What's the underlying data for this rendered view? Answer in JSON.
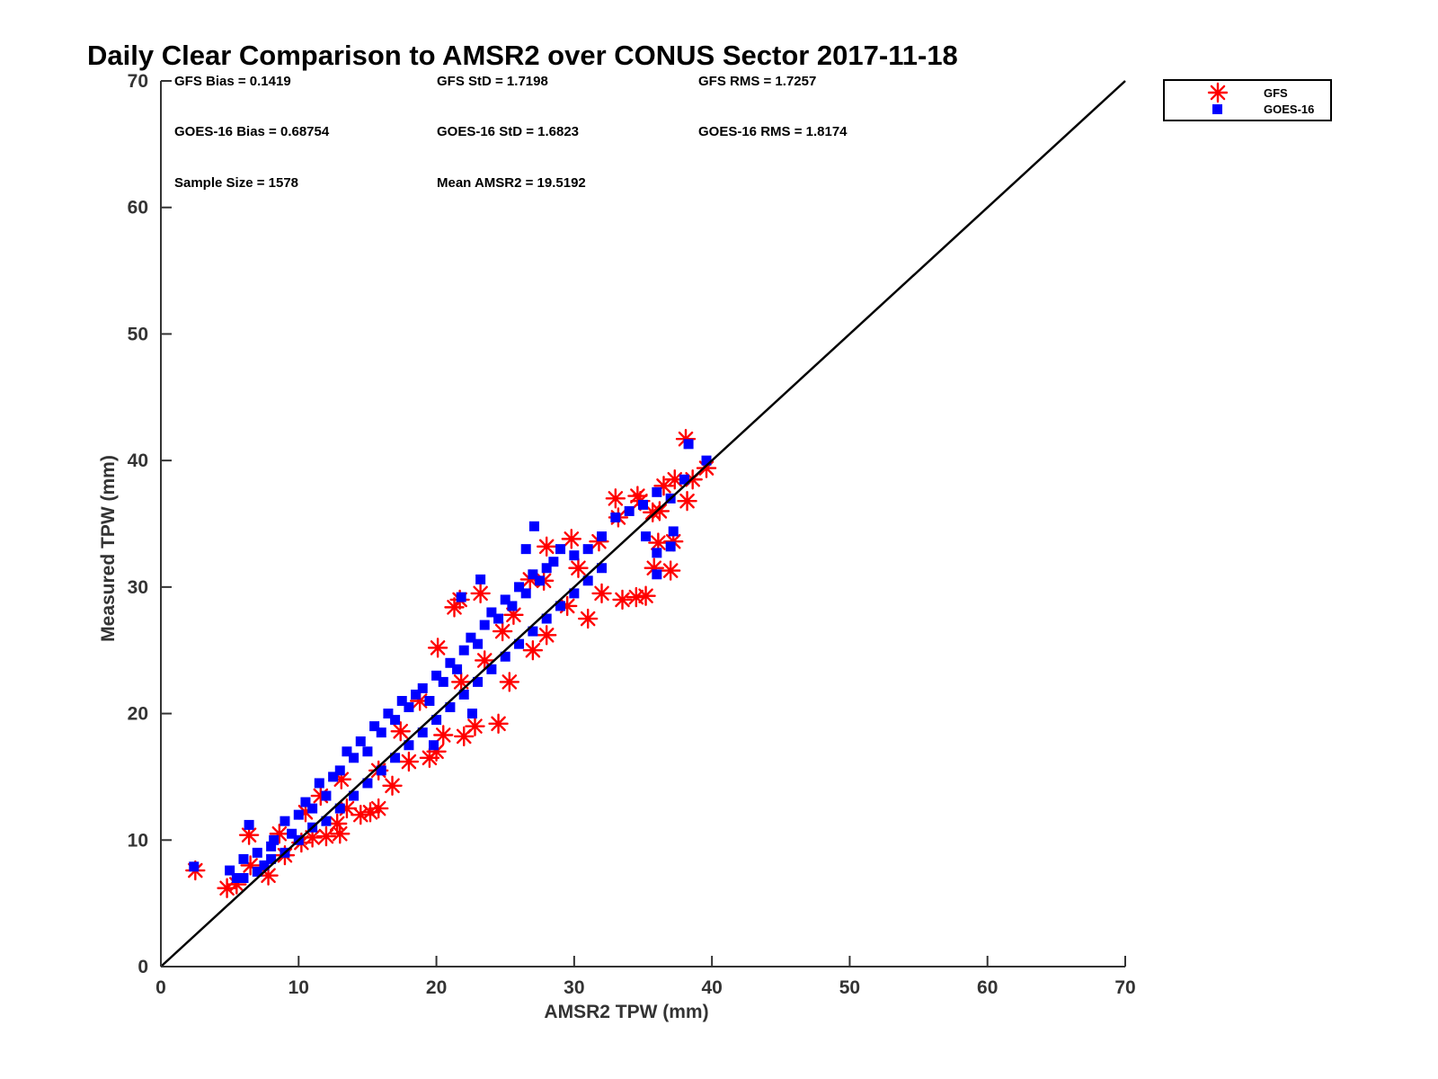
{
  "colors": {
    "gfs": "#ff0000",
    "goes": "#0000ff",
    "axis": "#333333",
    "line": "#000000"
  },
  "chart_data": {
    "type": "scatter",
    "title": "Daily Clear Comparison to AMSR2 over CONUS Sector 2017-11-18",
    "xlabel": "AMSR2 TPW (mm)",
    "ylabel": "Measured TPW (mm)",
    "xlim": [
      0,
      70
    ],
    "ylim": [
      0,
      70
    ],
    "xticks": [
      "0",
      "10",
      "20",
      "30",
      "40",
      "50",
      "60",
      "70"
    ],
    "yticks": [
      "0",
      "10",
      "20",
      "30",
      "40",
      "50",
      "60",
      "70"
    ],
    "grid": false,
    "legend_position": "top-right, outside plot",
    "reference_line": {
      "type": "one-to-one",
      "from": [
        0,
        0
      ],
      "to": [
        70,
        70
      ]
    },
    "stats": [
      [
        "GFS Bias = 0.1419",
        "GFS StD = 1.7198",
        "GFS RMS = 1.7257"
      ],
      [
        "GOES-16 Bias = 0.68754",
        "GOES-16 StD = 1.6823",
        "GOES-16 RMS = 1.8174"
      ],
      [
        "Sample Size = 1578",
        "Mean AMSR2 = 19.5192"
      ]
    ],
    "series": [
      {
        "name": "GFS",
        "marker": "asterisk",
        "color": "#ff0000",
        "points": [
          [
            2.5,
            7.6
          ],
          [
            4.8,
            6.2
          ],
          [
            5.5,
            6.5
          ],
          [
            6.4,
            10.4
          ],
          [
            7.8,
            7.2
          ],
          [
            9.0,
            8.8
          ],
          [
            10.2,
            9.8
          ],
          [
            11.0,
            10.2
          ],
          [
            12.0,
            10.3
          ],
          [
            13.0,
            10.5
          ],
          [
            13.5,
            12.5
          ],
          [
            14.5,
            12.0
          ],
          [
            15.2,
            12.2
          ],
          [
            15.8,
            12.5
          ],
          [
            16.8,
            14.3
          ],
          [
            18.0,
            16.2
          ],
          [
            19.5,
            16.5
          ],
          [
            20.0,
            17.0
          ],
          [
            20.5,
            18.3
          ],
          [
            22.0,
            18.2
          ],
          [
            22.8,
            19.0
          ],
          [
            24.5,
            19.2
          ],
          [
            21.3,
            28.4
          ],
          [
            21.7,
            29.0
          ],
          [
            23.2,
            29.5
          ],
          [
            20.1,
            25.2
          ],
          [
            13.1,
            14.8
          ],
          [
            15.8,
            15.5
          ],
          [
            25.3,
            22.5
          ],
          [
            27.0,
            25.0
          ],
          [
            28.0,
            26.2
          ],
          [
            29.5,
            28.5
          ],
          [
            31.0,
            27.5
          ],
          [
            32.0,
            29.5
          ],
          [
            33.5,
            29.0
          ],
          [
            34.5,
            29.2
          ],
          [
            35.2,
            29.3
          ],
          [
            35.8,
            31.5
          ],
          [
            37.0,
            31.3
          ],
          [
            28.0,
            33.2
          ],
          [
            29.8,
            33.8
          ],
          [
            31.8,
            33.6
          ],
          [
            33.0,
            37.0
          ],
          [
            34.6,
            37.2
          ],
          [
            36.5,
            38.0
          ],
          [
            37.3,
            38.5
          ],
          [
            38.2,
            36.8
          ],
          [
            38.6,
            38.5
          ],
          [
            39.6,
            39.4
          ],
          [
            38.1,
            41.7
          ],
          [
            33.2,
            35.5
          ],
          [
            36.1,
            33.5
          ],
          [
            37.2,
            33.6
          ],
          [
            35.7,
            35.9
          ],
          [
            34.8,
            36.8
          ],
          [
            36.2,
            36.0
          ],
          [
            30.3,
            31.5
          ],
          [
            26.8,
            30.6
          ],
          [
            25.6,
            27.8
          ],
          [
            27.8,
            30.5
          ],
          [
            21.8,
            22.5
          ],
          [
            23.5,
            24.2
          ],
          [
            17.4,
            18.6
          ],
          [
            11.6,
            13.5
          ],
          [
            8.6,
            10.5
          ],
          [
            6.5,
            8.0
          ],
          [
            10.5,
            12.2
          ],
          [
            18.8,
            21.0
          ],
          [
            24.8,
            26.5
          ],
          [
            12.8,
            11.3
          ]
        ]
      },
      {
        "name": "GOES-16",
        "marker": "square",
        "color": "#0000ff",
        "points": [
          [
            2.4,
            7.9
          ],
          [
            5.0,
            7.6
          ],
          [
            5.5,
            7.0
          ],
          [
            6.0,
            8.5
          ],
          [
            6.4,
            11.2
          ],
          [
            7.0,
            9.0
          ],
          [
            7.5,
            8.0
          ],
          [
            8.0,
            9.5
          ],
          [
            8.2,
            10.0
          ],
          [
            9.0,
            11.5
          ],
          [
            9.5,
            10.5
          ],
          [
            10.0,
            12.0
          ],
          [
            10.5,
            13.0
          ],
          [
            11.0,
            12.5
          ],
          [
            11.5,
            14.5
          ],
          [
            12.0,
            13.5
          ],
          [
            12.5,
            15.0
          ],
          [
            13.0,
            15.5
          ],
          [
            13.5,
            17.0
          ],
          [
            14.0,
            16.5
          ],
          [
            14.5,
            17.8
          ],
          [
            15.0,
            17.0
          ],
          [
            15.5,
            19.0
          ],
          [
            16.0,
            18.5
          ],
          [
            16.5,
            20.0
          ],
          [
            17.0,
            19.5
          ],
          [
            17.5,
            21.0
          ],
          [
            18.0,
            20.5
          ],
          [
            18.5,
            21.5
          ],
          [
            19.0,
            22.0
          ],
          [
            19.5,
            21.0
          ],
          [
            20.0,
            23.0
          ],
          [
            20.5,
            22.5
          ],
          [
            21.0,
            24.0
          ],
          [
            21.5,
            23.5
          ],
          [
            22.0,
            25.0
          ],
          [
            22.5,
            26.0
          ],
          [
            23.0,
            25.5
          ],
          [
            23.5,
            27.0
          ],
          [
            24.0,
            28.0
          ],
          [
            24.5,
            27.5
          ],
          [
            25.0,
            29.0
          ],
          [
            25.5,
            28.5
          ],
          [
            26.0,
            30.0
          ],
          [
            26.5,
            29.5
          ],
          [
            27.0,
            31.0
          ],
          [
            27.5,
            30.5
          ],
          [
            28.0,
            31.5
          ],
          [
            28.5,
            32.0
          ],
          [
            29.0,
            33.0
          ],
          [
            30.0,
            32.5
          ],
          [
            31.0,
            33.0
          ],
          [
            32.0,
            34.0
          ],
          [
            33.0,
            35.5
          ],
          [
            34.0,
            36.0
          ],
          [
            35.0,
            36.5
          ],
          [
            36.0,
            37.5
          ],
          [
            37.0,
            37.0
          ],
          [
            38.0,
            38.5
          ],
          [
            38.3,
            41.3
          ],
          [
            39.6,
            40.0
          ],
          [
            27.1,
            34.8
          ],
          [
            26.5,
            33.0
          ],
          [
            23.2,
            30.6
          ],
          [
            21.8,
            29.2
          ],
          [
            35.2,
            34.0
          ],
          [
            36.0,
            32.7
          ],
          [
            37.2,
            34.4
          ],
          [
            37.0,
            33.2
          ],
          [
            36.0,
            31.0
          ],
          [
            12.0,
            11.5
          ],
          [
            13.0,
            12.5
          ],
          [
            14.0,
            13.5
          ],
          [
            15.0,
            14.5
          ],
          [
            16.0,
            15.5
          ],
          [
            17.0,
            16.5
          ],
          [
            18.0,
            17.5
          ],
          [
            19.0,
            18.5
          ],
          [
            20.0,
            19.5
          ],
          [
            21.0,
            20.5
          ],
          [
            22.0,
            21.5
          ],
          [
            23.0,
            22.5
          ],
          [
            24.0,
            23.5
          ],
          [
            25.0,
            24.5
          ],
          [
            26.0,
            25.5
          ],
          [
            27.0,
            26.5
          ],
          [
            28.0,
            27.5
          ],
          [
            29.0,
            28.5
          ],
          [
            30.0,
            29.5
          ],
          [
            31.0,
            30.5
          ],
          [
            32.0,
            31.5
          ],
          [
            9.0,
            9.0
          ],
          [
            10.0,
            10.0
          ],
          [
            11.0,
            11.0
          ],
          [
            8.0,
            8.5
          ],
          [
            7.0,
            7.5
          ],
          [
            6.0,
            7.0
          ],
          [
            19.8,
            17.5
          ],
          [
            22.6,
            20.0
          ]
        ]
      }
    ]
  }
}
